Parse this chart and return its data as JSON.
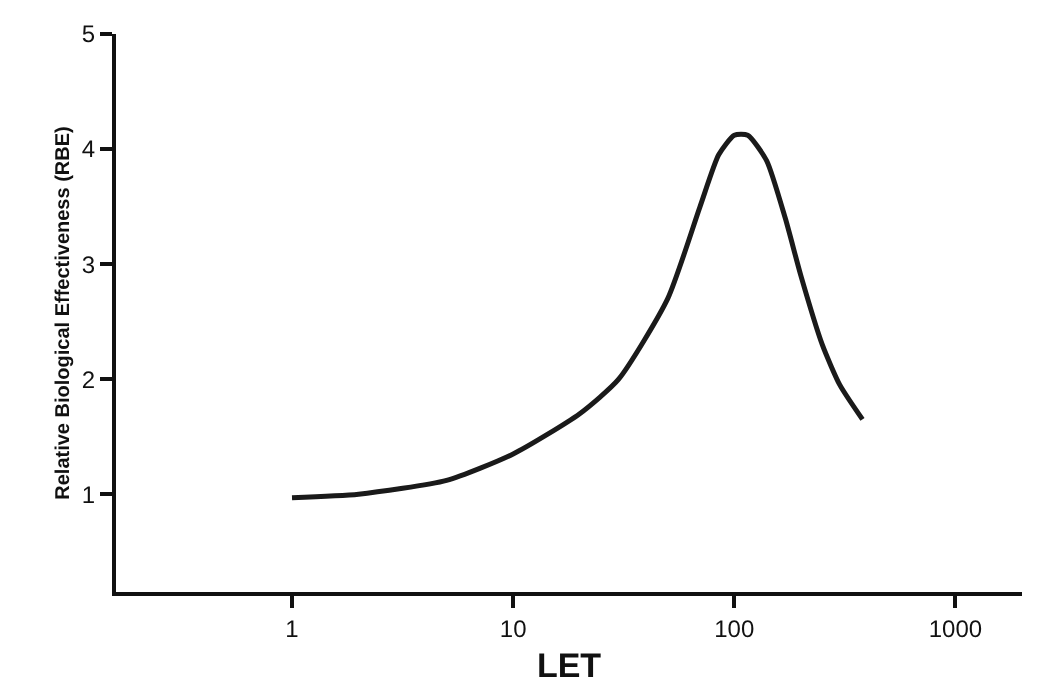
{
  "chart_data": {
    "type": "line",
    "xlabel": "LET",
    "ylabel": "Relative Biological Effectiveness (RBE)",
    "log": "x",
    "x": [
      1,
      2,
      5,
      10,
      20,
      30,
      50,
      70,
      85,
      100,
      115,
      140,
      170,
      200,
      250,
      300,
      380
    ],
    "series": [
      {
        "color": "#1a1a1a",
        "values": [
          0.97,
          1.0,
          1.12,
          1.35,
          1.7,
          2.0,
          2.7,
          3.5,
          3.95,
          4.12,
          4.12,
          3.9,
          3.4,
          2.9,
          2.3,
          1.95,
          1.65
        ]
      }
    ],
    "xlim": [
      0.16,
      2000
    ],
    "xticks": [
      1,
      10,
      100,
      1000
    ],
    "ylim": [
      0.15,
      5
    ],
    "yticks": [
      1,
      2,
      3,
      4,
      5
    ],
    "marker": "none",
    "line_style": "solid"
  }
}
